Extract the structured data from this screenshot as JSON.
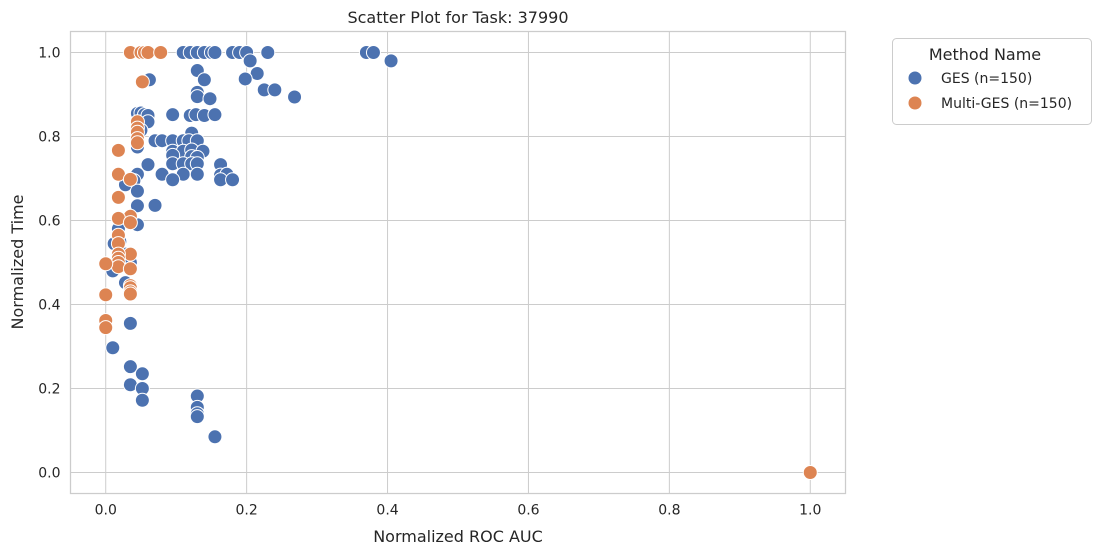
{
  "chart_data": {
    "type": "scatter",
    "title": "Scatter Plot for Task: 37990",
    "xlabel": "Normalized ROC AUC",
    "ylabel": "Normalized Time",
    "xlim": [
      -0.05,
      1.05
    ],
    "ylim": [
      -0.05,
      1.05
    ],
    "xticks": [
      "0.0",
      "0.2",
      "0.4",
      "0.6",
      "0.8",
      "1.0"
    ],
    "xtick_values": [
      0.0,
      0.2,
      0.4,
      0.6,
      0.8,
      1.0
    ],
    "yticks": [
      "0.0",
      "0.2",
      "0.4",
      "0.6",
      "0.8",
      "1.0"
    ],
    "ytick_values": [
      0.0,
      0.2,
      0.4,
      0.6,
      0.8,
      1.0
    ],
    "grid": true,
    "legend": {
      "title": "Method Name",
      "placement": "outside-top-right"
    },
    "series": [
      {
        "name": "GES (n=150)",
        "color": "#4c72b0",
        "points": [
          [
            0.11,
            1.0
          ],
          [
            0.12,
            1.0
          ],
          [
            0.13,
            1.0
          ],
          [
            0.14,
            1.0
          ],
          [
            0.15,
            1.0
          ],
          [
            0.155,
            1.0
          ],
          [
            0.18,
            1.0
          ],
          [
            0.19,
            1.0
          ],
          [
            0.2,
            1.0
          ],
          [
            0.23,
            1.0
          ],
          [
            0.37,
            1.0
          ],
          [
            0.38,
            1.0
          ],
          [
            0.405,
            0.98
          ],
          [
            0.205,
            0.98
          ],
          [
            0.215,
            0.95
          ],
          [
            0.13,
            0.957
          ],
          [
            0.198,
            0.937
          ],
          [
            0.14,
            0.935
          ],
          [
            0.062,
            0.935
          ],
          [
            0.225,
            0.911
          ],
          [
            0.24,
            0.911
          ],
          [
            0.13,
            0.905
          ],
          [
            0.13,
            0.895
          ],
          [
            0.148,
            0.89
          ],
          [
            0.268,
            0.894
          ],
          [
            0.045,
            0.855
          ],
          [
            0.05,
            0.856
          ],
          [
            0.055,
            0.852
          ],
          [
            0.06,
            0.85
          ],
          [
            0.095,
            0.852
          ],
          [
            0.12,
            0.85
          ],
          [
            0.128,
            0.852
          ],
          [
            0.14,
            0.85
          ],
          [
            0.155,
            0.852
          ],
          [
            0.06,
            0.835
          ],
          [
            0.045,
            0.82
          ],
          [
            0.05,
            0.815
          ],
          [
            0.122,
            0.808
          ],
          [
            0.045,
            0.79
          ],
          [
            0.07,
            0.79
          ],
          [
            0.08,
            0.79
          ],
          [
            0.095,
            0.79
          ],
          [
            0.11,
            0.79
          ],
          [
            0.118,
            0.79
          ],
          [
            0.13,
            0.79
          ],
          [
            0.045,
            0.775
          ],
          [
            0.095,
            0.765
          ],
          [
            0.11,
            0.765
          ],
          [
            0.122,
            0.768
          ],
          [
            0.138,
            0.765
          ],
          [
            0.095,
            0.755
          ],
          [
            0.122,
            0.752
          ],
          [
            0.13,
            0.75
          ],
          [
            0.095,
            0.735
          ],
          [
            0.11,
            0.735
          ],
          [
            0.122,
            0.735
          ],
          [
            0.13,
            0.735
          ],
          [
            0.06,
            0.733
          ],
          [
            0.163,
            0.733
          ],
          [
            0.08,
            0.71
          ],
          [
            0.11,
            0.71
          ],
          [
            0.13,
            0.71
          ],
          [
            0.163,
            0.708
          ],
          [
            0.172,
            0.71
          ],
          [
            0.045,
            0.71
          ],
          [
            0.095,
            0.697
          ],
          [
            0.163,
            0.697
          ],
          [
            0.18,
            0.697
          ],
          [
            0.04,
            0.695
          ],
          [
            0.028,
            0.685
          ],
          [
            0.045,
            0.67
          ],
          [
            0.07,
            0.636
          ],
          [
            0.045,
            0.635
          ],
          [
            0.045,
            0.59
          ],
          [
            0.018,
            0.58
          ],
          [
            0.012,
            0.545
          ],
          [
            0.02,
            0.55
          ],
          [
            0.028,
            0.52
          ],
          [
            0.035,
            0.5
          ],
          [
            0.01,
            0.48
          ],
          [
            0.028,
            0.452
          ],
          [
            0.035,
            0.355
          ],
          [
            0.01,
            0.297
          ],
          [
            0.035,
            0.252
          ],
          [
            0.052,
            0.235
          ],
          [
            0.035,
            0.209
          ],
          [
            0.052,
            0.2
          ],
          [
            0.052,
            0.172
          ],
          [
            0.13,
            0.182
          ],
          [
            0.13,
            0.155
          ],
          [
            0.13,
            0.14
          ],
          [
            0.13,
            0.133
          ],
          [
            0.155,
            0.085
          ]
        ]
      },
      {
        "name": "Multi-GES (n=150)",
        "color": "#dd8452",
        "points": [
          [
            0.035,
            1.0
          ],
          [
            0.05,
            1.0
          ],
          [
            0.055,
            1.0
          ],
          [
            0.06,
            1.0
          ],
          [
            0.078,
            1.0
          ],
          [
            0.052,
            0.93
          ],
          [
            0.045,
            0.835
          ],
          [
            0.045,
            0.82
          ],
          [
            0.045,
            0.81
          ],
          [
            0.045,
            0.795
          ],
          [
            0.045,
            0.785
          ],
          [
            0.018,
            0.767
          ],
          [
            0.018,
            0.71
          ],
          [
            0.035,
            0.698
          ],
          [
            0.018,
            0.655
          ],
          [
            0.035,
            0.61
          ],
          [
            0.018,
            0.605
          ],
          [
            0.035,
            0.595
          ],
          [
            0.018,
            0.565
          ],
          [
            0.018,
            0.545
          ],
          [
            0.035,
            0.52
          ],
          [
            0.018,
            0.52
          ],
          [
            0.018,
            0.51
          ],
          [
            0.018,
            0.5
          ],
          [
            0.018,
            0.49
          ],
          [
            0.0,
            0.497
          ],
          [
            0.035,
            0.485
          ],
          [
            0.035,
            0.445
          ],
          [
            0.035,
            0.44
          ],
          [
            0.035,
            0.43
          ],
          [
            0.035,
            0.425
          ],
          [
            0.0,
            0.423
          ],
          [
            0.0,
            0.362
          ],
          [
            0.0,
            0.345
          ],
          [
            1.0,
            0.0
          ]
        ]
      }
    ]
  }
}
